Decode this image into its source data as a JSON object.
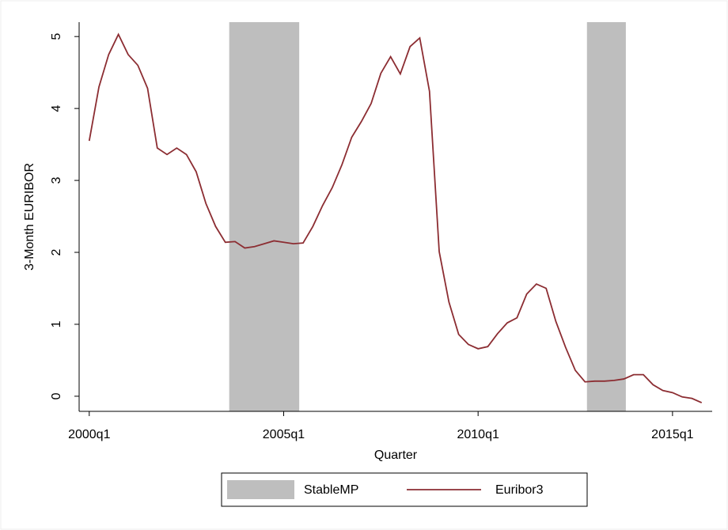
{
  "chart_data": {
    "type": "line",
    "x_label": "Quarter",
    "y_label": "3-Month EURIBOR",
    "x": [
      2000,
      2000.25,
      2000.5,
      2000.75,
      2001,
      2001.25,
      2001.5,
      2001.75,
      2002,
      2002.25,
      2002.5,
      2002.75,
      2003,
      2003.25,
      2003.5,
      2003.75,
      2004,
      2004.25,
      2004.5,
      2004.75,
      2005,
      2005.25,
      2005.5,
      2005.75,
      2006,
      2006.25,
      2006.5,
      2006.75,
      2007,
      2007.25,
      2007.5,
      2007.75,
      2008,
      2008.25,
      2008.5,
      2008.75,
      2009,
      2009.25,
      2009.5,
      2009.75,
      2010,
      2010.25,
      2010.5,
      2010.75,
      2011,
      2011.25,
      2011.5,
      2011.75,
      2012,
      2012.25,
      2012.5,
      2012.75,
      2013,
      2013.25,
      2013.5,
      2013.75,
      2014,
      2014.25,
      2014.5,
      2014.75,
      2015,
      2015.25,
      2015.5,
      2015.75
    ],
    "series": [
      {
        "name": "StableMP",
        "color": "#bebebe",
        "x_ranges": [
          [
            2003.6,
            2005.4
          ],
          [
            2012.8,
            2013.8
          ]
        ]
      },
      {
        "name": "Euribor3",
        "color": "#8c2d32",
        "values": [
          3.55,
          4.3,
          4.75,
          5.03,
          4.75,
          4.6,
          4.28,
          3.45,
          3.36,
          3.45,
          3.36,
          3.12,
          2.68,
          2.36,
          2.14,
          2.15,
          2.06,
          2.08,
          2.12,
          2.16,
          2.14,
          2.12,
          2.13,
          2.36,
          2.65,
          2.9,
          3.22,
          3.6,
          3.82,
          4.07,
          4.49,
          4.72,
          4.48,
          4.86,
          4.98,
          4.24,
          2.01,
          1.31,
          0.86,
          0.72,
          0.66,
          0.69,
          0.87,
          1.02,
          1.09,
          1.42,
          1.56,
          1.5,
          1.04,
          0.68,
          0.36,
          0.2,
          0.21,
          0.21,
          0.22,
          0.24,
          0.3,
          0.3,
          0.16,
          0.08,
          0.05,
          -0.01,
          -0.03,
          -0.09
        ]
      }
    ],
    "xlim": [
      1999.74,
      2016.02
    ],
    "xticks": [
      {
        "value": 2000,
        "label": "2000q1"
      },
      {
        "value": 2005,
        "label": "2005q1"
      },
      {
        "value": 2010,
        "label": "2010q1"
      },
      {
        "value": 2015,
        "label": "2015q1"
      }
    ],
    "ylim": [
      -0.21,
      5.2
    ],
    "yticks": [
      0,
      1,
      2,
      3,
      4,
      5
    ],
    "legend": "bottom"
  }
}
